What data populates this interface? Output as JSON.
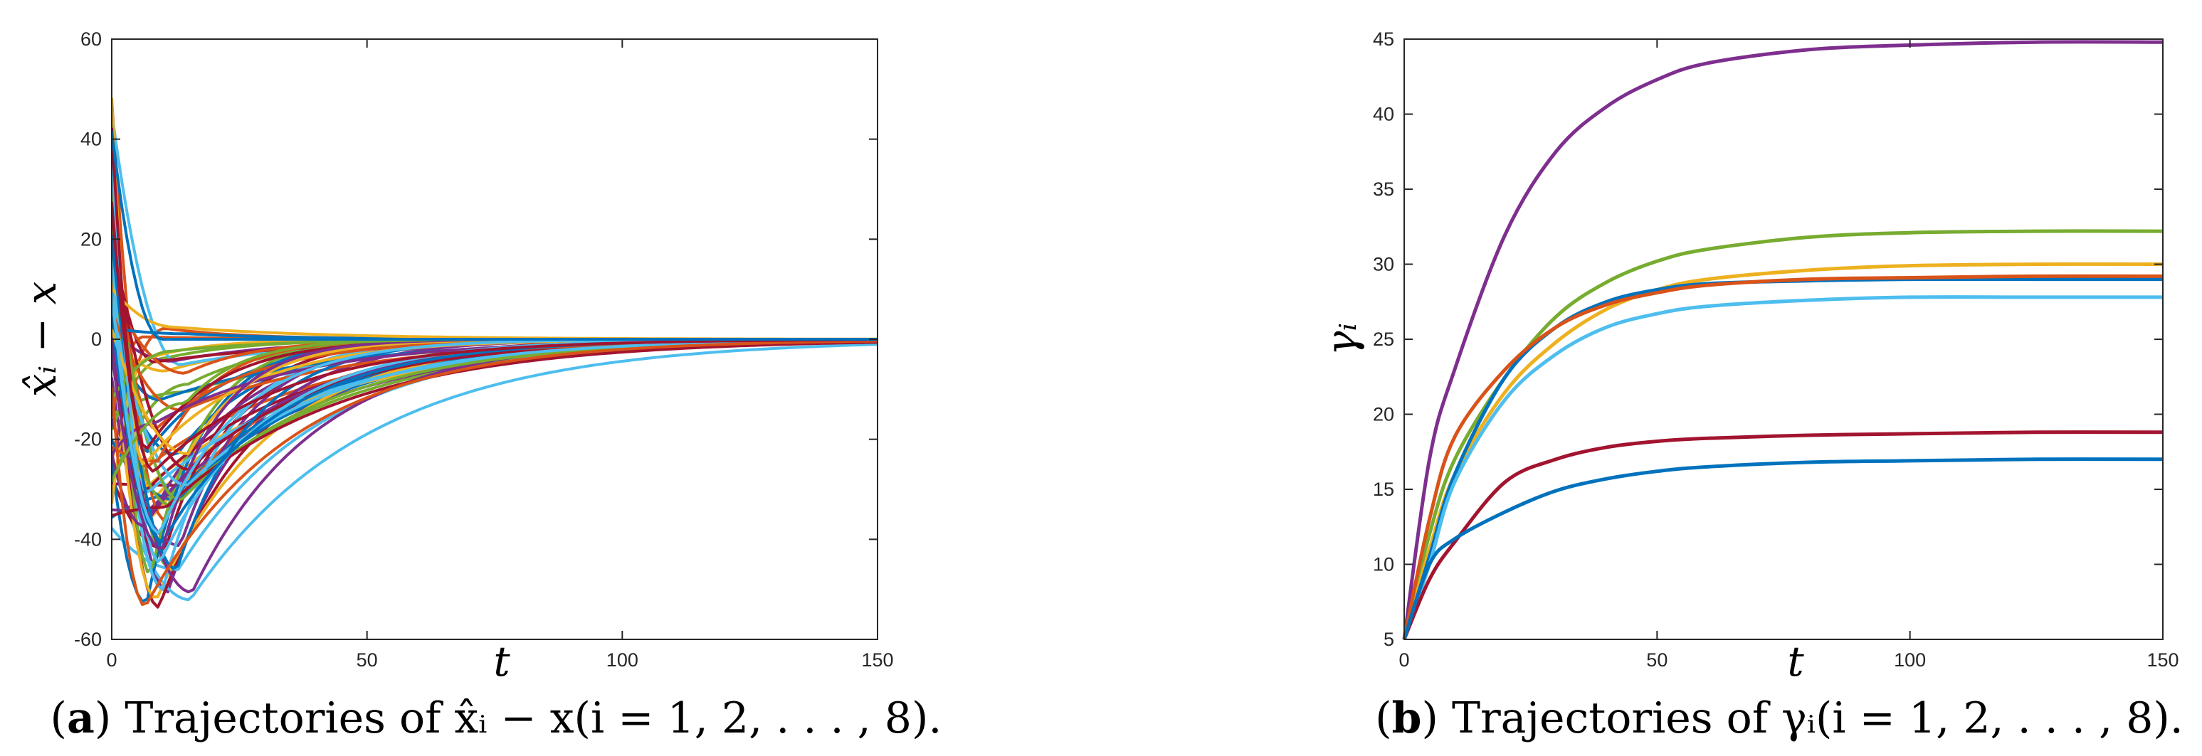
{
  "chart_data": [
    {
      "type": "line",
      "panel_label": "a",
      "caption_text": "Trajectories of x̂ᵢ − x(i = 1, 2, . . . , 8).",
      "ylabel": "x̂ᵢ − x",
      "xlabel": "t",
      "xlim": [
        0,
        150
      ],
      "ylim": [
        -60,
        60
      ],
      "xticks": [
        "0",
        "50",
        "100",
        "150"
      ],
      "yticks": [
        "-60",
        "-40",
        "-20",
        "0",
        "20",
        "40",
        "60"
      ],
      "grid": false,
      "legend": "none",
      "colors": [
        "#0072BD",
        "#D95319",
        "#EDB120",
        "#7E2F8E",
        "#77AC30",
        "#4DBEEE",
        "#A2142F"
      ],
      "series_groups": [
        {
          "description_values": "initial",
          "initial": [
            8,
            15,
            -5,
            12,
            20,
            -10,
            25,
            -2,
            30,
            5,
            -8,
            18,
            44,
            46,
            48,
            50,
            42,
            40,
            35,
            30,
            38,
            32
          ]
        },
        {
          "description_values": "final",
          "final": 0
        }
      ]
    },
    {
      "type": "line",
      "panel_label": "b",
      "caption_text": "Trajectories of γᵢ(i = 1, 2, . . . , 8).",
      "ylabel": "γᵢ",
      "xlabel": "t",
      "xlim": [
        0,
        150
      ],
      "ylim": [
        5,
        45
      ],
      "xticks": [
        "0",
        "50",
        "100",
        "150"
      ],
      "yticks": [
        "5",
        "10",
        "15",
        "20",
        "25",
        "30",
        "35",
        "40",
        "45"
      ],
      "grid": false,
      "legend": "none",
      "series": [
        {
          "color": "#7E2F8E",
          "x": [
            0,
            5,
            10,
            20,
            30,
            40,
            50,
            60,
            80,
            100,
            125,
            150
          ],
          "values": [
            5,
            17,
            23,
            32,
            37.5,
            40.5,
            42.3,
            43.4,
            44.3,
            44.6,
            44.8,
            44.8
          ]
        },
        {
          "color": "#77AC30",
          "x": [
            0,
            5,
            10,
            20,
            30,
            40,
            50,
            60,
            80,
            100,
            125,
            150
          ],
          "values": [
            5,
            12,
            17,
            22.5,
            26.5,
            28.8,
            30.2,
            31.0,
            31.8,
            32.1,
            32.2,
            32.2
          ]
        },
        {
          "color": "#EDB120",
          "x": [
            0,
            5,
            10,
            20,
            30,
            40,
            50,
            60,
            80,
            100,
            125,
            150
          ],
          "values": [
            5,
            11,
            16,
            21.5,
            24.8,
            27.0,
            28.3,
            29.0,
            29.6,
            29.9,
            30.0,
            30.0
          ]
        },
        {
          "color": "#0072BD",
          "x": [
            0,
            5,
            10,
            20,
            30,
            40,
            50,
            60,
            80,
            100,
            125,
            150
          ],
          "values": [
            5,
            10.5,
            16,
            22.5,
            25.8,
            27.5,
            28.3,
            28.7,
            28.9,
            29.0,
            29.0,
            29.0
          ]
        },
        {
          "color": "#D95319",
          "x": [
            0,
            5,
            10,
            20,
            30,
            40,
            50,
            60,
            80,
            100,
            125,
            150
          ],
          "values": [
            5,
            13,
            18.5,
            23.0,
            25.8,
            27.3,
            28.1,
            28.6,
            29.0,
            29.1,
            29.2,
            29.2
          ]
        },
        {
          "color": "#4DBEEE",
          "x": [
            0,
            5,
            10,
            20,
            30,
            40,
            50,
            60,
            80,
            100,
            125,
            150
          ],
          "values": [
            5,
            10,
            15.5,
            21.0,
            24.0,
            25.8,
            26.7,
            27.2,
            27.6,
            27.8,
            27.8,
            27.8
          ]
        },
        {
          "color": "#A2142F",
          "x": [
            0,
            5,
            10,
            20,
            30,
            40,
            50,
            60,
            80,
            100,
            125,
            150
          ],
          "values": [
            5,
            9,
            11.5,
            15.5,
            17.0,
            17.8,
            18.2,
            18.4,
            18.6,
            18.7,
            18.8,
            18.8
          ]
        },
        {
          "color": "#0072BD",
          "x": [
            0,
            5,
            10,
            20,
            30,
            40,
            50,
            60,
            80,
            100,
            125,
            150
          ],
          "values": [
            5,
            10,
            11.7,
            13.5,
            14.9,
            15.7,
            16.2,
            16.5,
            16.8,
            16.9,
            17.0,
            17.0
          ]
        }
      ]
    }
  ]
}
